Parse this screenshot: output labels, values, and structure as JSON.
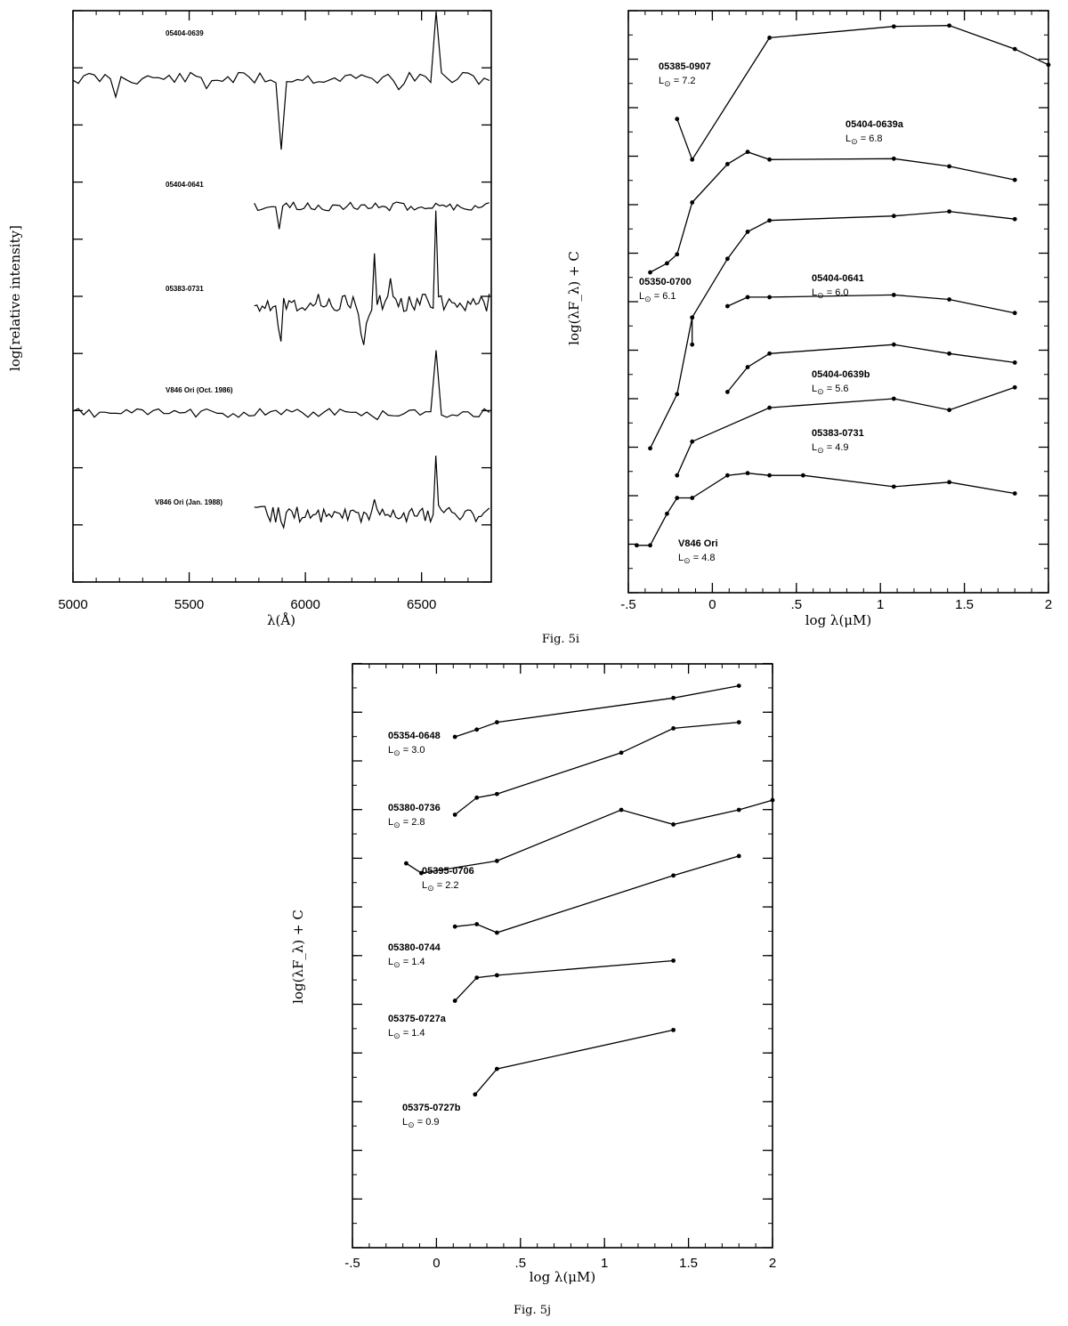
{
  "chart_data": [
    {
      "type": "line",
      "figure": "Fig. 5i (left)",
      "xlabel": "λ(Å)",
      "ylabel": "log[relative intensity]",
      "xlim": [
        5000,
        6800
      ],
      "xticks": [
        "5000",
        "5500",
        "6000",
        "6500"
      ],
      "series": [
        {
          "name": "05404-0639",
          "x_range": [
            5000,
            6800
          ],
          "features": {
            "absorption_A": [
              5890,
              5896
            ],
            "emission_A": [
              6563
            ]
          }
        },
        {
          "name": "05404-0641",
          "x_range": [
            5780,
            6800
          ],
          "features": {
            "absorption_A": [
              5890
            ]
          }
        },
        {
          "name": "05383-0731",
          "x_range": [
            5780,
            6800
          ],
          "features": {
            "emission_A": [
              6300,
              6563
            ],
            "absorption_A": [
              5890
            ]
          }
        },
        {
          "name": "V846 Ori (Oct. 1986)",
          "x_range": [
            5000,
            6800
          ],
          "features": {
            "emission_A": [
              6563
            ]
          }
        },
        {
          "name": "V846 Ori (Jan. 1988)",
          "x_range": [
            5780,
            6800
          ],
          "features": {
            "emission_A": [
              5890,
              6300,
              6563
            ],
            "absorption_A": [
              5896
            ]
          }
        }
      ]
    },
    {
      "type": "line",
      "figure": "Fig. 5i (right)",
      "xlabel": "log λ(μM)",
      "ylabel": "log(λF_λ) + C",
      "xlim": [
        -0.5,
        2
      ],
      "xticks": [
        "-.5",
        "0",
        ".5",
        "1",
        "1.5",
        "2"
      ],
      "series": [
        {
          "name": "05385-0907",
          "L": "7.2",
          "x": [
            -0.21,
            -0.12,
            0.34,
            1.08,
            1.41,
            1.8,
            2.0
          ],
          "y": [
            10.5,
            9.6,
            12.3,
            12.55,
            12.57,
            12.05,
            11.7
          ]
        },
        {
          "name": "05404-0639a",
          "L": "6.8",
          "x": [
            -0.37,
            -0.27,
            -0.21,
            -0.12,
            0.09,
            0.21,
            0.34,
            1.08,
            1.41,
            1.8
          ],
          "y": [
            7.1,
            7.3,
            7.5,
            8.65,
            9.5,
            9.77,
            9.6,
            9.62,
            9.45,
            9.15
          ]
        },
        {
          "name": "05350-0700",
          "L": "6.1",
          "x": [
            -0.12,
            -0.12,
            0.09,
            0.21,
            0.34,
            1.08,
            1.41,
            1.8
          ],
          "y": [
            5.5,
            6.1,
            7.4,
            8.0,
            8.25,
            8.35,
            8.45,
            8.28
          ]
        },
        {
          "name": "05404-0641",
          "L": "6.0",
          "x": [
            0.09,
            0.21,
            0.34,
            1.08,
            1.41,
            1.8
          ],
          "y": [
            6.35,
            6.55,
            6.55,
            6.6,
            6.5,
            6.2
          ]
        },
        {
          "name": "05404-0639b",
          "L": "5.6",
          "x": [
            0.09,
            0.21,
            0.34,
            1.08,
            1.41,
            1.8
          ],
          "y": [
            4.45,
            5.0,
            5.3,
            5.5,
            5.3,
            5.1
          ]
        },
        {
          "name": "05383-0731",
          "L": "4.9",
          "x": [
            -0.21,
            -0.12,
            0.34,
            1.08,
            1.41,
            1.8
          ],
          "y": [
            2.6,
            3.35,
            4.1,
            4.3,
            4.05,
            4.55
          ]
        },
        {
          "name": "V846 Ori",
          "L": "4.8",
          "x": [
            -0.45,
            -0.37,
            -0.27,
            -0.21,
            -0.12,
            0.09,
            0.21,
            0.34,
            0.54,
            1.08,
            1.41,
            1.8
          ],
          "y": [
            1.05,
            1.05,
            1.75,
            2.1,
            2.1,
            2.6,
            2.65,
            2.6,
            2.6,
            2.35,
            2.45,
            2.2
          ]
        },
        {
          "name": "",
          "x": [
            -0.37,
            -0.21,
            -0.12
          ],
          "y": [
            3.2,
            4.4,
            6.1
          ]
        }
      ]
    },
    {
      "type": "line",
      "figure": "Fig. 5j",
      "xlabel": "log λ(μM)",
      "ylabel": "log(λF_λ) + C",
      "xlim": [
        -0.5,
        2
      ],
      "xticks": [
        "-.5",
        "0",
        ".5",
        "1",
        "1.5",
        "2"
      ],
      "series": [
        {
          "name": "05354-0648",
          "L": "3.0",
          "x": [
            0.11,
            0.24,
            0.36,
            1.41,
            1.8
          ],
          "y": [
            22.5,
            22.8,
            23.1,
            24.1,
            24.6
          ]
        },
        {
          "name": "05380-0736",
          "L": "2.8",
          "x": [
            0.11,
            0.24,
            0.36,
            1.1,
            1.41,
            1.8
          ],
          "y": [
            19.3,
            20.0,
            20.15,
            21.85,
            22.85,
            23.1
          ]
        },
        {
          "name": "05395-0706",
          "L": "2.2",
          "x": [
            -0.18,
            -0.09,
            0.36,
            1.1,
            1.41,
            1.8,
            2.0
          ],
          "y": [
            17.3,
            16.9,
            17.4,
            19.5,
            18.9,
            19.5,
            19.9
          ]
        },
        {
          "name": "05380-0744",
          "L": "1.4",
          "x": [
            0.11,
            0.24,
            0.36,
            1.41,
            1.8
          ],
          "y": [
            14.7,
            14.8,
            14.45,
            16.8,
            17.6
          ]
        },
        {
          "name": "05375-0727a",
          "L": "1.4",
          "x": [
            0.11,
            0.24,
            0.36,
            1.41
          ],
          "y": [
            11.65,
            12.6,
            12.7,
            13.3
          ]
        },
        {
          "name": "05375-0727b",
          "L": "0.9",
          "x": [
            0.23,
            0.36,
            1.41
          ],
          "y": [
            7.8,
            8.85,
            10.45
          ]
        }
      ]
    }
  ],
  "captions": {
    "fig_i": "Fig. 5i",
    "fig_j": "Fig. 5j"
  }
}
